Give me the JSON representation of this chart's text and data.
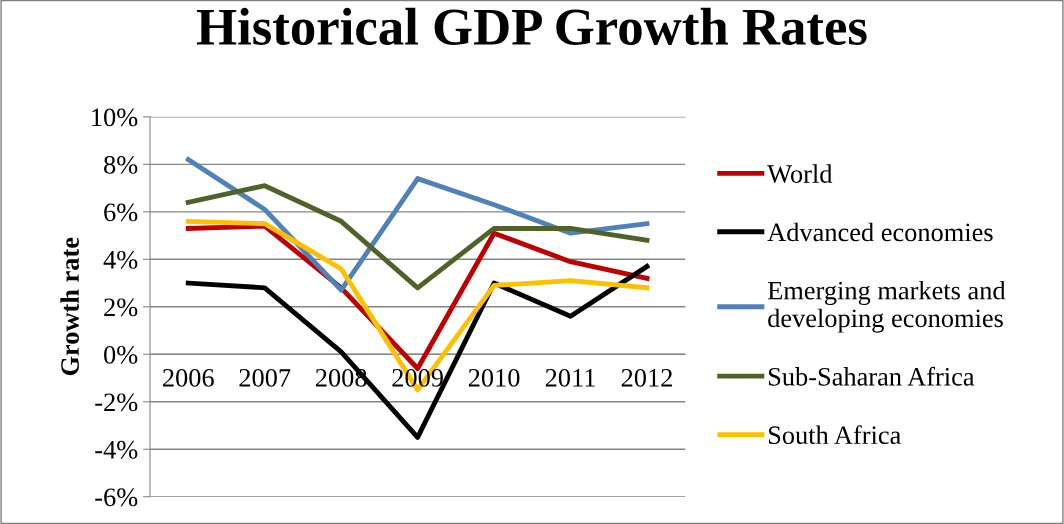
{
  "chart_data": {
    "type": "line",
    "title": "Historical GDP Growth Rates",
    "ylabel": "Growth rate",
    "categories": [
      "2006",
      "2007",
      "2008",
      "2009",
      "2010",
      "2011",
      "2012"
    ],
    "series": [
      {
        "name": "World",
        "color": "#c00000",
        "values": [
          5.3,
          5.4,
          2.8,
          -0.6,
          5.1,
          3.9,
          3.2
        ]
      },
      {
        "name": "Advanced economies",
        "color": "#000000",
        "values": [
          3.0,
          2.8,
          0.1,
          -3.5,
          3.0,
          1.6,
          3.7
        ]
      },
      {
        "name": "Emerging markets and\ndeveloping economies",
        "color": "#4f81bd",
        "values": [
          8.2,
          6.1,
          2.7,
          7.4,
          6.3,
          5.1,
          5.5
        ]
      },
      {
        "name": "Sub-Saharan Africa",
        "color": "#4f6228",
        "values": [
          6.4,
          7.1,
          5.6,
          2.8,
          5.3,
          5.3,
          4.8
        ]
      },
      {
        "name": "South Africa",
        "color": "#ffc000",
        "values": [
          5.6,
          5.5,
          3.6,
          -1.5,
          2.9,
          3.1,
          2.8
        ]
      }
    ],
    "ylim": [
      -6,
      10
    ],
    "yticks": [
      {
        "value": -6,
        "label": "-6%"
      },
      {
        "value": -4,
        "label": "-4%"
      },
      {
        "value": -2,
        "label": "-2%"
      },
      {
        "value": 0,
        "label": "0%"
      },
      {
        "value": 2,
        "label": "2%"
      },
      {
        "value": 4,
        "label": "4%"
      },
      {
        "value": 6,
        "label": "6%"
      },
      {
        "value": 8,
        "label": "8%"
      },
      {
        "value": 10,
        "label": "10%"
      }
    ],
    "grid": "y",
    "legend": "right",
    "marker": "none",
    "line_style": "solid"
  }
}
